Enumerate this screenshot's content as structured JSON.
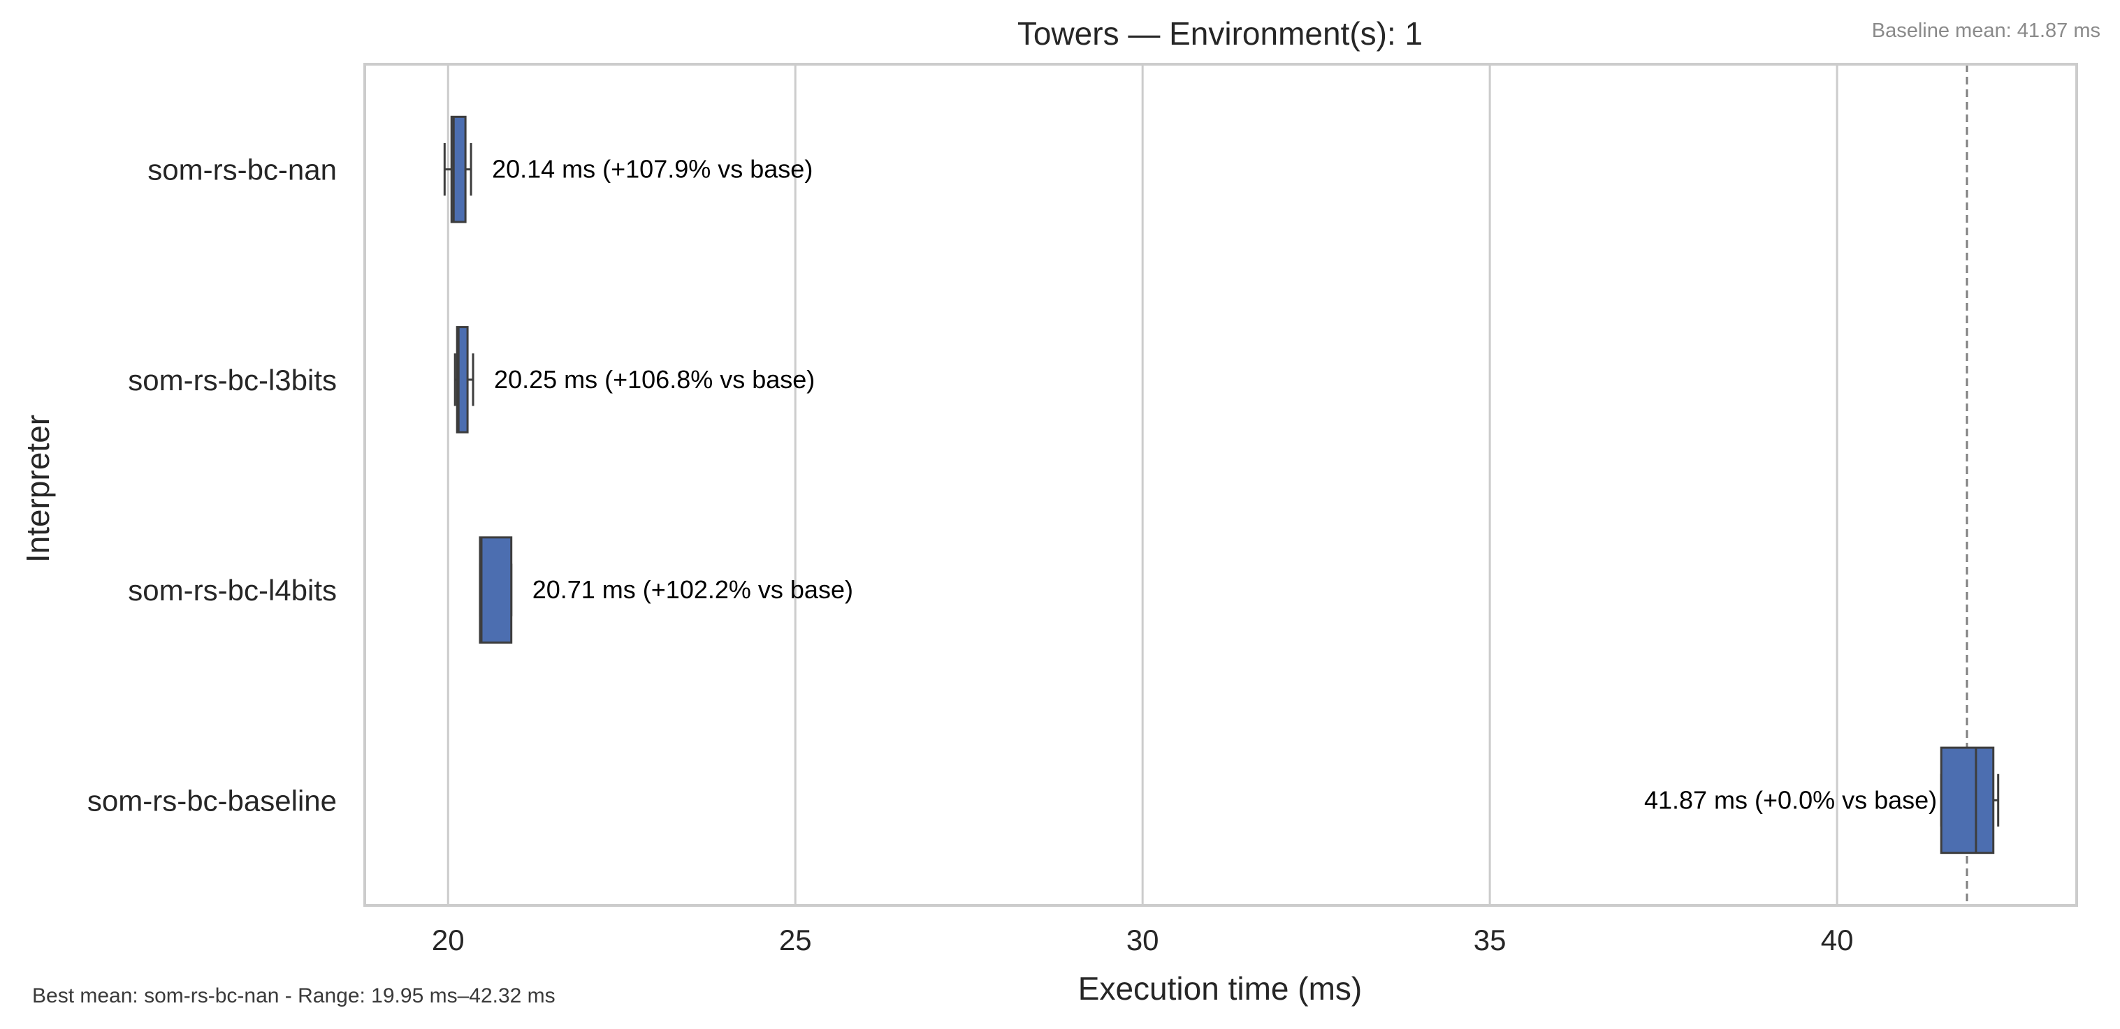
{
  "chart_data": {
    "type": "box",
    "orientation": "horizontal",
    "title": "Towers — Environment(s): 1",
    "xlabel": "Execution time (ms)",
    "ylabel": "Interpreter",
    "xlim": [
      18.8,
      43.45
    ],
    "xticks": [
      20,
      25,
      30,
      35,
      40
    ],
    "grid": "vertical",
    "box_color": "#4c6eb0",
    "categories": [
      "som-rs-bc-nan",
      "som-rs-bc-l3bits",
      "som-rs-bc-l4bits",
      "som-rs-bc-baseline"
    ],
    "boxes": [
      {
        "name": "som-rs-bc-nan",
        "whisker_low": 19.95,
        "q1": 20.05,
        "median": 20.08,
        "q3": 20.25,
        "whisker_high": 20.33,
        "mean": 20.14
      },
      {
        "name": "som-rs-bc-l3bits",
        "whisker_low": 20.1,
        "q1": 20.13,
        "median": 20.15,
        "q3": 20.28,
        "whisker_high": 20.36,
        "mean": 20.25
      },
      {
        "name": "som-rs-bc-l4bits",
        "whisker_low": 20.46,
        "q1": 20.46,
        "median": 20.48,
        "q3": 20.91,
        "whisker_high": 20.91,
        "mean": 20.71
      },
      {
        "name": "som-rs-bc-baseline",
        "whisker_low": 41.5,
        "q1": 41.5,
        "median": 42.0,
        "q3": 42.25,
        "whisker_high": 42.32,
        "mean": 41.87
      }
    ],
    "annotations": [
      "20.14 ms  (+107.9% vs base)",
      "20.25 ms  (+106.8% vs base)",
      "20.71 ms  (+102.2% vs base)",
      "41.87 ms  (+0.0% vs base)"
    ],
    "baseline_mean": 41.87,
    "baseline_label": "Baseline mean: 41.87 ms",
    "footer": "Best mean: som-rs-bc-nan - Range: 19.95 ms–42.32 ms"
  }
}
